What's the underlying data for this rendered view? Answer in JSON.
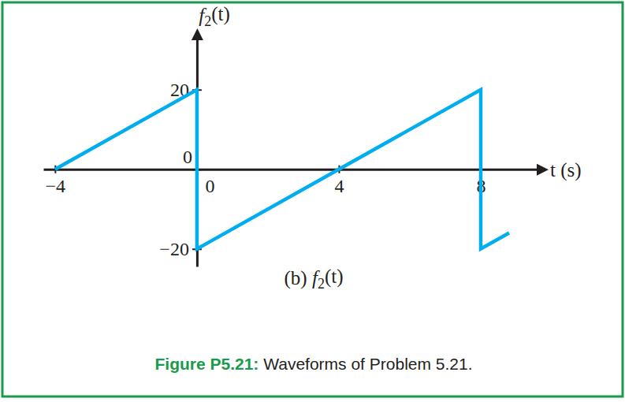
{
  "chart_data": {
    "type": "line",
    "title": "Figure P5.21: Waveforms of Problem 5.21.",
    "subtitle": "(b) f2(t)",
    "x_label": "t (s)",
    "y_label": "f2(t)",
    "x": [
      -4,
      0,
      0,
      8,
      8,
      8.8
    ],
    "values": [
      0,
      20,
      -20,
      20,
      -20,
      -16
    ],
    "color": "#00aeef",
    "xlim": [
      -4.33,
      9.8
    ],
    "ylim": [
      -24.4,
      34.6
    ],
    "xticks": [
      {
        "value": -4,
        "label": "−4"
      },
      0,
      4,
      8
    ],
    "yticks": [
      {
        "value": -20,
        "label": "−20"
      },
      0,
      20
    ]
  }
}
